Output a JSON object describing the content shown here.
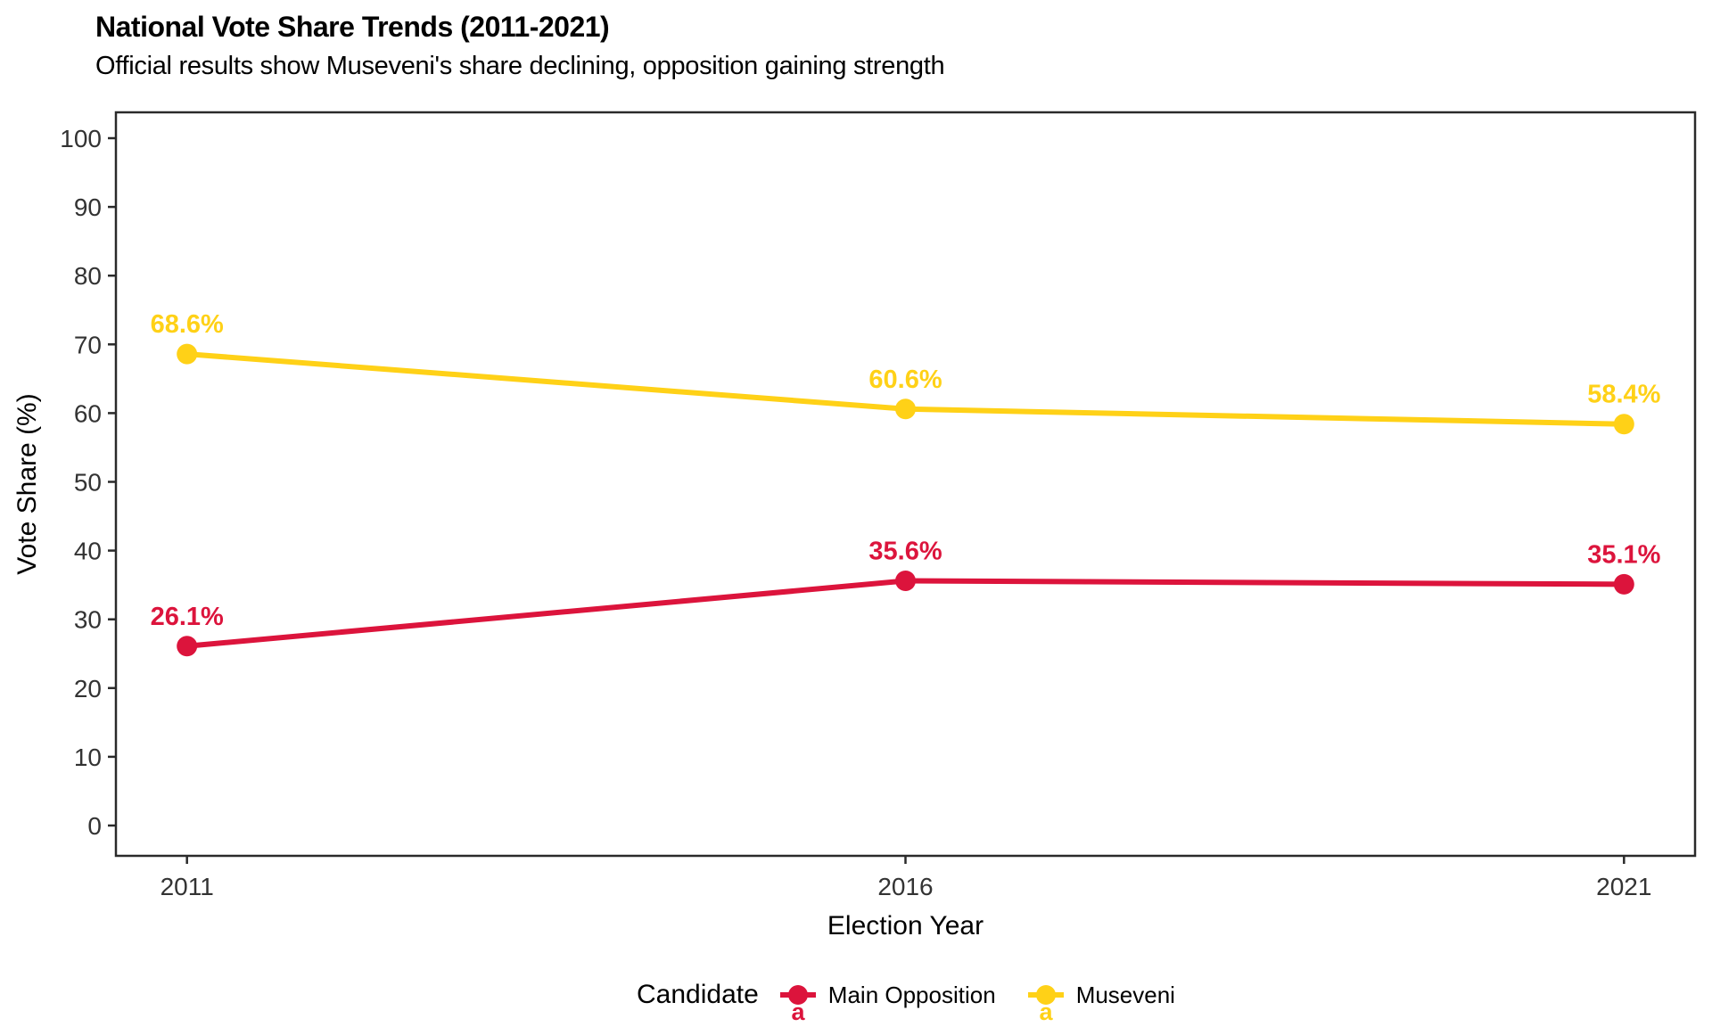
{
  "chart_data": {
    "type": "line",
    "title": "National Vote Share Trends (2011-2021)",
    "subtitle": "Official results show Museveni's share declining, opposition gaining strength",
    "xlabel": "Election Year",
    "ylabel": "Vote Share (%)",
    "categories": [
      "2011",
      "2016",
      "2021"
    ],
    "series": [
      {
        "name": "Main Opposition",
        "color": "#DC143C",
        "values": [
          26.1,
          35.6,
          35.1
        ],
        "point_labels": [
          "26.1%",
          "35.6%",
          "35.1%"
        ]
      },
      {
        "name": "Museveni",
        "color": "#FFD117",
        "values": [
          68.6,
          60.6,
          58.4
        ],
        "point_labels": [
          "68.6%",
          "60.6%",
          "58.4%"
        ]
      }
    ],
    "ylim": [
      0,
      100
    ],
    "yticks": [
      0,
      10,
      20,
      30,
      40,
      50,
      60,
      70,
      80,
      90,
      100
    ],
    "grid": false,
    "legend_position": "bottom",
    "legend_title": "Candidate",
    "legend_key_letter": "a",
    "axis_text_color": "#333333",
    "axis_line_color": "#2a2a2a"
  }
}
